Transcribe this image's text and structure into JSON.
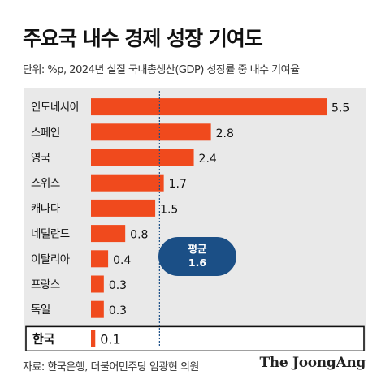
{
  "header": {
    "title": "주요국 내수 경제 성장 기여도",
    "subtitle": "단위: %p, 2024년 실질 국내총생산(GDP) 성장률 중 내수 기여율"
  },
  "footer": {
    "source": "자료: 한국은행, 더불어민주당 임광현 의원",
    "brand": "The JoongAng"
  },
  "colors": {
    "bar": "#f04a1d",
    "average_bubble": "#1b4f86",
    "average_line": "#1b4f86",
    "panel": "#e9e9e9"
  },
  "chart_data": {
    "type": "bar",
    "orientation": "horizontal",
    "categories": [
      "인도네시아",
      "스페인",
      "영국",
      "스위스",
      "캐나다",
      "네덜란드",
      "이탈리아",
      "프랑스",
      "독일",
      "한국"
    ],
    "values": [
      5.5,
      2.8,
      2.4,
      1.7,
      1.5,
      0.8,
      0.4,
      0.3,
      0.3,
      0.1
    ],
    "value_labels": [
      "5.5",
      "2.8",
      "2.4",
      "1.7",
      "1.5",
      "0.8",
      "0.4",
      "0.3",
      "0.3",
      "0.1"
    ],
    "highlight_category": "한국",
    "xlim": [
      0,
      5.5
    ],
    "grid": false,
    "reference_line": {
      "value": 1.6,
      "label_line1": "평균",
      "label_line2": "1.6"
    }
  }
}
